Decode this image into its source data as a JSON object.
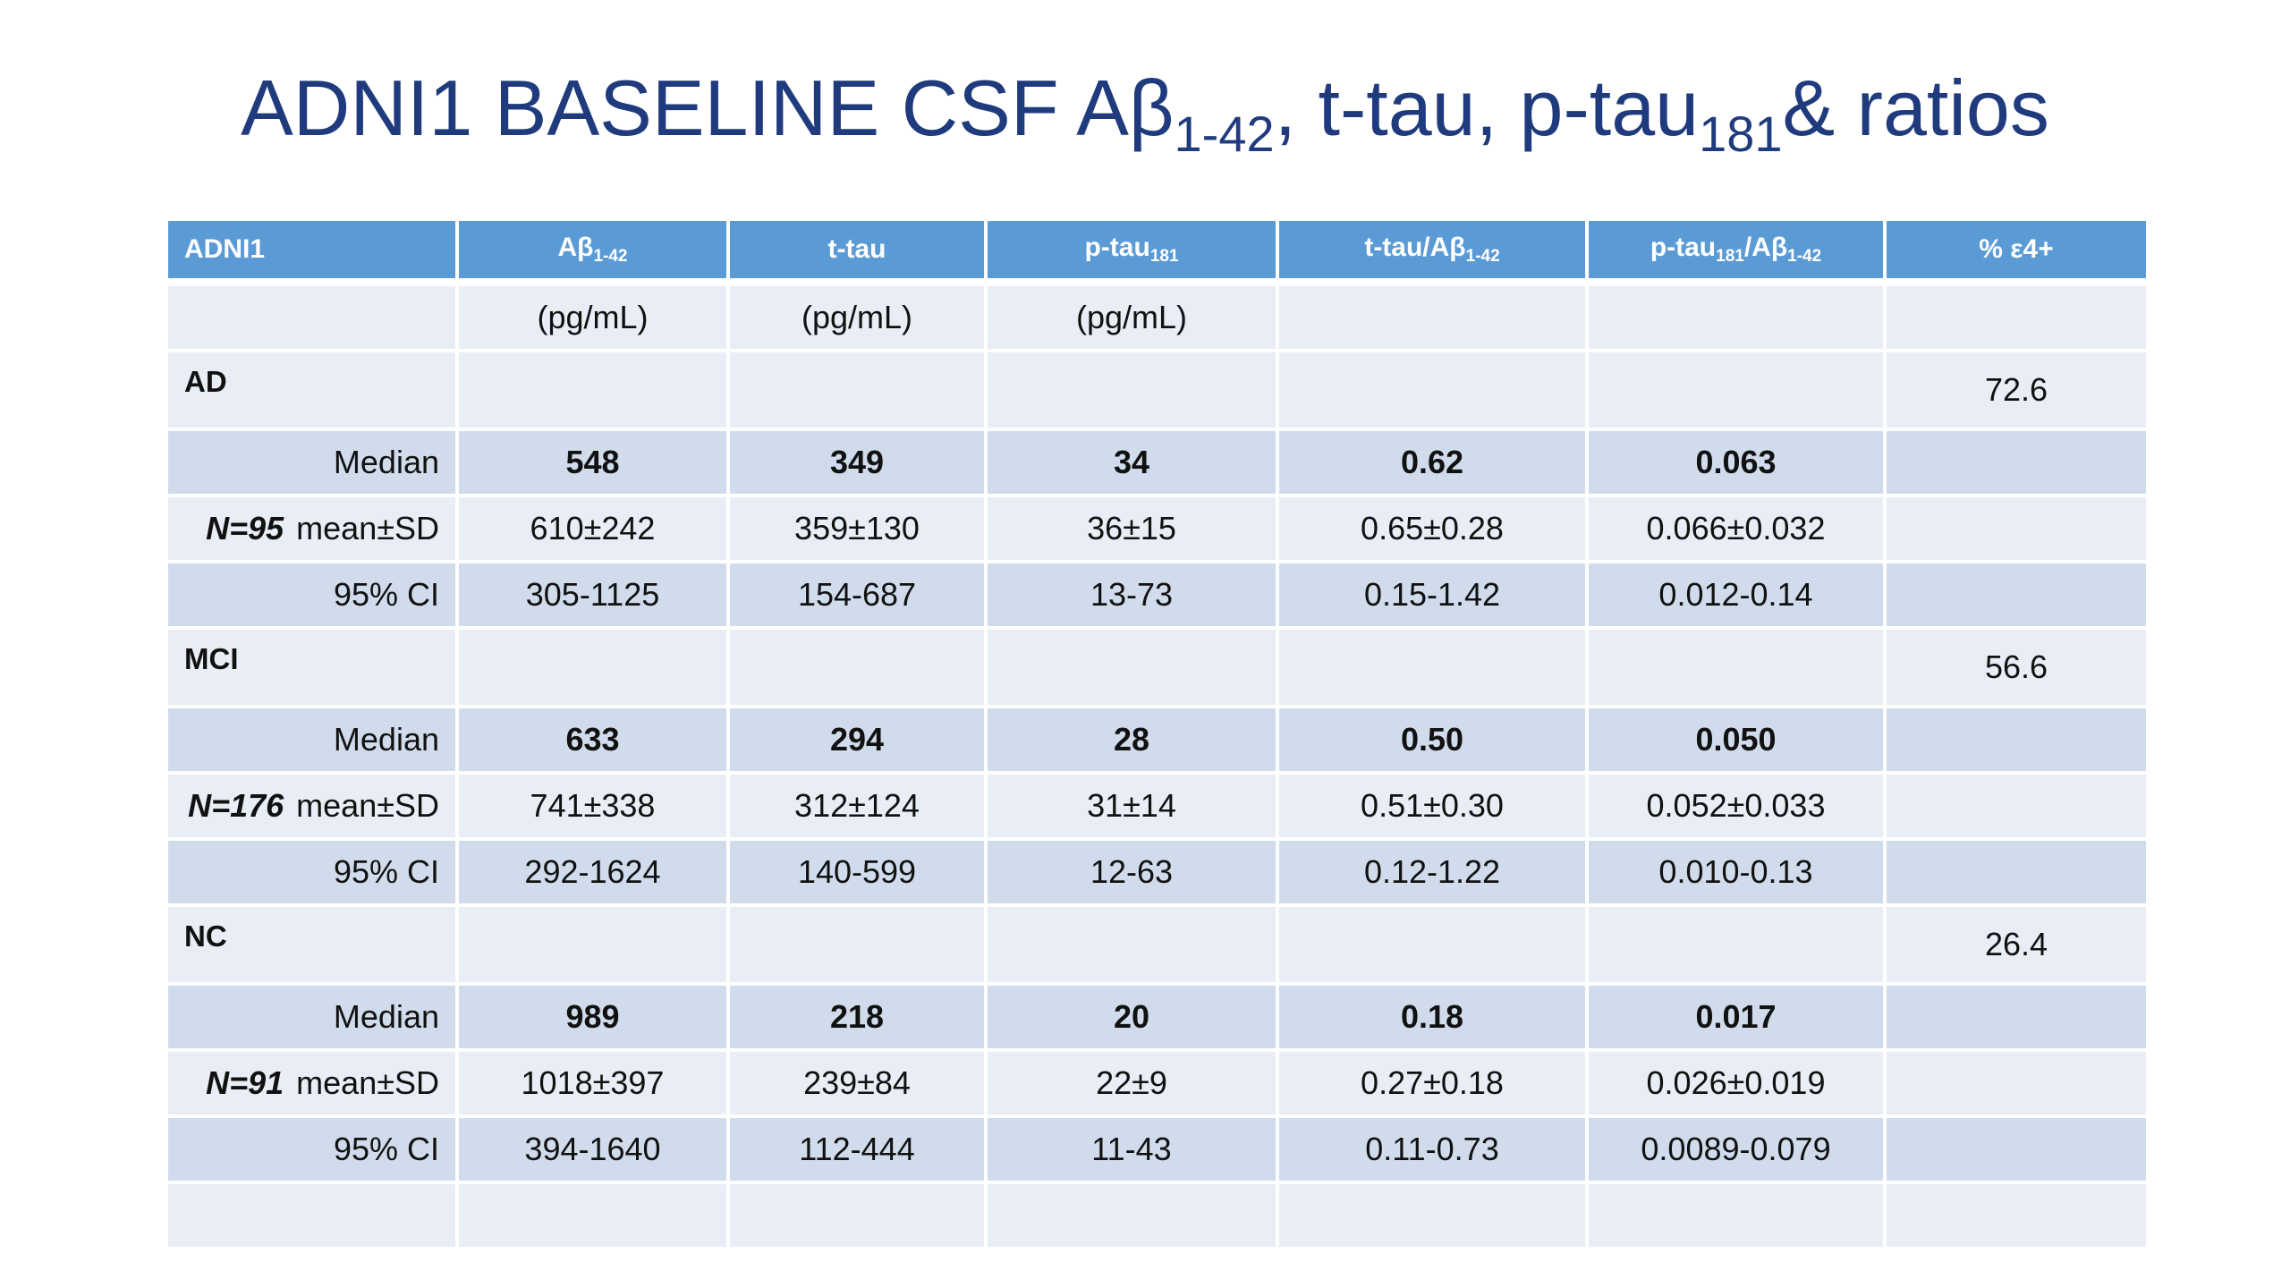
{
  "title": [
    "ADNI1 BASELINE CSF Aβ",
    "1-42",
    ", t-tau, p-tau",
    "181",
    "& ratios"
  ],
  "table": {
    "header": [
      [
        "ADNI1"
      ],
      [
        "Aβ",
        "1-42"
      ],
      [
        "t-tau"
      ],
      [
        "p-tau",
        "181"
      ],
      [
        "t-tau/Aβ",
        "1-42"
      ],
      [
        "p-tau",
        "181",
        "/Aβ",
        "1-42"
      ],
      [
        "% ε4+"
      ]
    ],
    "units": [
      "(pg/mL)",
      "(pg/mL)",
      "(pg/mL)"
    ],
    "groups": [
      {
        "name": "AD",
        "n": "N=95",
        "pct_e4": "72.6",
        "rows": [
          {
            "label": "Median",
            "values": [
              "548",
              "349",
              "34",
              "0.62",
              "0.063"
            ]
          },
          {
            "label": "mean±SD",
            "values": [
              "610±242",
              "359±130",
              "36±15",
              "0.65±0.28",
              "0.066±0.032"
            ]
          },
          {
            "label": "95% CI",
            "values": [
              "305-1125",
              "154-687",
              "13-73",
              "0.15-1.42",
              "0.012-0.14"
            ]
          }
        ]
      },
      {
        "name": "MCI",
        "n": "N=176",
        "pct_e4": "56.6",
        "rows": [
          {
            "label": "Median",
            "values": [
              "633",
              "294",
              "28",
              "0.50",
              "0.050"
            ]
          },
          {
            "label": "mean±SD",
            "values": [
              "741±338",
              "312±124",
              "31±14",
              "0.51±0.30",
              "0.052±0.033"
            ]
          },
          {
            "label": "95% CI",
            "values": [
              "292-1624",
              "140-599",
              "12-63",
              "0.12-1.22",
              "0.010-0.13"
            ]
          }
        ]
      },
      {
        "name": "NC",
        "n": "N=91",
        "pct_e4": "26.4",
        "rows": [
          {
            "label": "Median",
            "values": [
              "989",
              "218",
              "20",
              "0.18",
              "0.017"
            ]
          },
          {
            "label": "mean±SD",
            "values": [
              "1018±397",
              "239±84",
              "22±9",
              "0.27±0.18",
              "0.026±0.019"
            ]
          },
          {
            "label": "95% CI",
            "values": [
              "394-1640",
              "112-444",
              "11-43",
              "0.11-0.73",
              "0.0089-0.079"
            ]
          }
        ]
      }
    ]
  }
}
